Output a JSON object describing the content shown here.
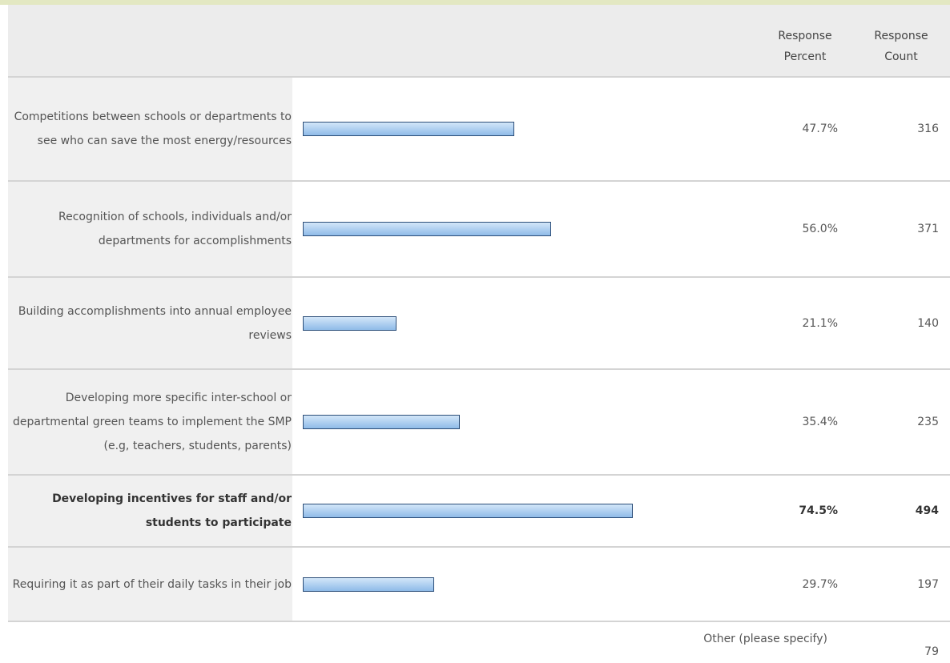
{
  "chart_data": {
    "type": "bar",
    "column_headers": [
      "Response Percent",
      "Response Count"
    ],
    "categories": [
      "Competitions between schools or departments to see who can save the most energy/resources",
      "Recognition of schools, individuals and/or departments for accomplishments",
      "Building accomplishments into annual employee reviews",
      "Developing more specific inter-school or departmental green teams to implement the SMP (e.g, teachers, students, parents)",
      "Developing incentives for staff and/or students to participate",
      "Requiring it as part of their daily tasks in their job"
    ],
    "values": [
      47.7,
      56.0,
      21.1,
      35.4,
      74.5,
      29.7
    ],
    "value_labels": [
      "47.7%",
      "56.0%",
      "21.1%",
      "35.4%",
      "74.5%",
      "29.7%"
    ],
    "counts": [
      316,
      371,
      140,
      235,
      494,
      197
    ],
    "bold_row": 4,
    "xlim": [
      0,
      100
    ],
    "color": "#a8cbef",
    "footer": {
      "label": "Other (please specify)",
      "count": 79
    }
  }
}
